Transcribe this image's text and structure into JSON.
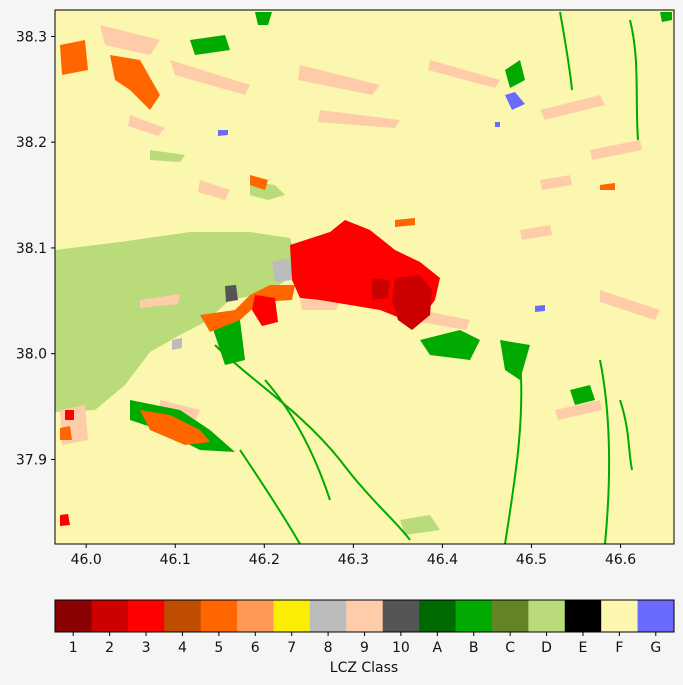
{
  "map": {
    "x_ticks": [
      "46.0",
      "46.1",
      "46.2",
      "46.3",
      "46.4",
      "46.5",
      "46.6"
    ],
    "y_ticks": [
      "38.3",
      "38.2",
      "38.1",
      "38.0",
      "37.9"
    ],
    "x_range": [
      45.965,
      46.66
    ],
    "y_range": [
      37.82,
      38.325
    ]
  },
  "colorbar": {
    "title": "LCZ Class",
    "classes": [
      {
        "label": "1",
        "color": "#8b0000"
      },
      {
        "label": "2",
        "color": "#cc0000"
      },
      {
        "label": "3",
        "color": "#ff0000"
      },
      {
        "label": "4",
        "color": "#bf4d00"
      },
      {
        "label": "5",
        "color": "#ff6600"
      },
      {
        "label": "6",
        "color": "#ff9955"
      },
      {
        "label": "7",
        "color": "#faee05"
      },
      {
        "label": "8",
        "color": "#bcbcbc"
      },
      {
        "label": "9",
        "color": "#ffccaa"
      },
      {
        "label": "10",
        "color": "#555555"
      },
      {
        "label": "A",
        "color": "#006a00"
      },
      {
        "label": "B",
        "color": "#00aa00"
      },
      {
        "label": "C",
        "color": "#648525"
      },
      {
        "label": "D",
        "color": "#b9db79"
      },
      {
        "label": "E",
        "color": "#000000"
      },
      {
        "label": "F",
        "color": "#fbf7ae"
      },
      {
        "label": "G",
        "color": "#6a6aff"
      }
    ]
  }
}
